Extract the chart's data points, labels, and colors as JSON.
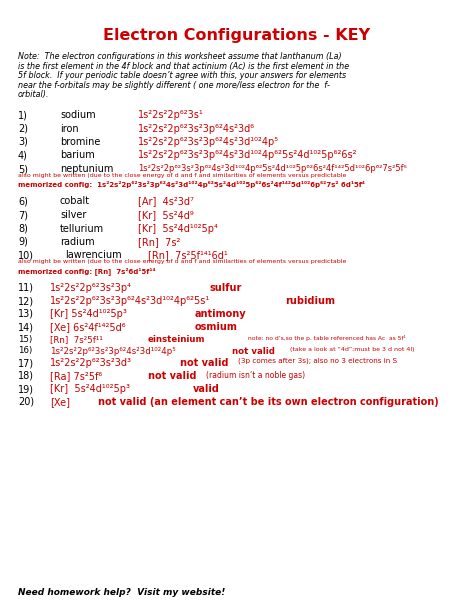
{
  "title": "Electron Configurations - KEY",
  "title_color": "#cc0000",
  "bg_color": "#ffffff",
  "black": "#000000",
  "red": "#cc0000",
  "note_text_line1": "Note:  The electron configurations in this worksheet assume that lanthanum (La)",
  "note_text_line2": "is the first element in the 4f block and that actinium (Ac) is the first element in the",
  "note_text_line3": "5f block.  If your periodic table doesn’t agree with this, your answers for elements",
  "note_text_line4": "near the f-orbitals may be slightly different ( one more/less electron for the  f-",
  "note_text_line5": "orbital).",
  "footer": "Need homework help?  Visit my website!"
}
